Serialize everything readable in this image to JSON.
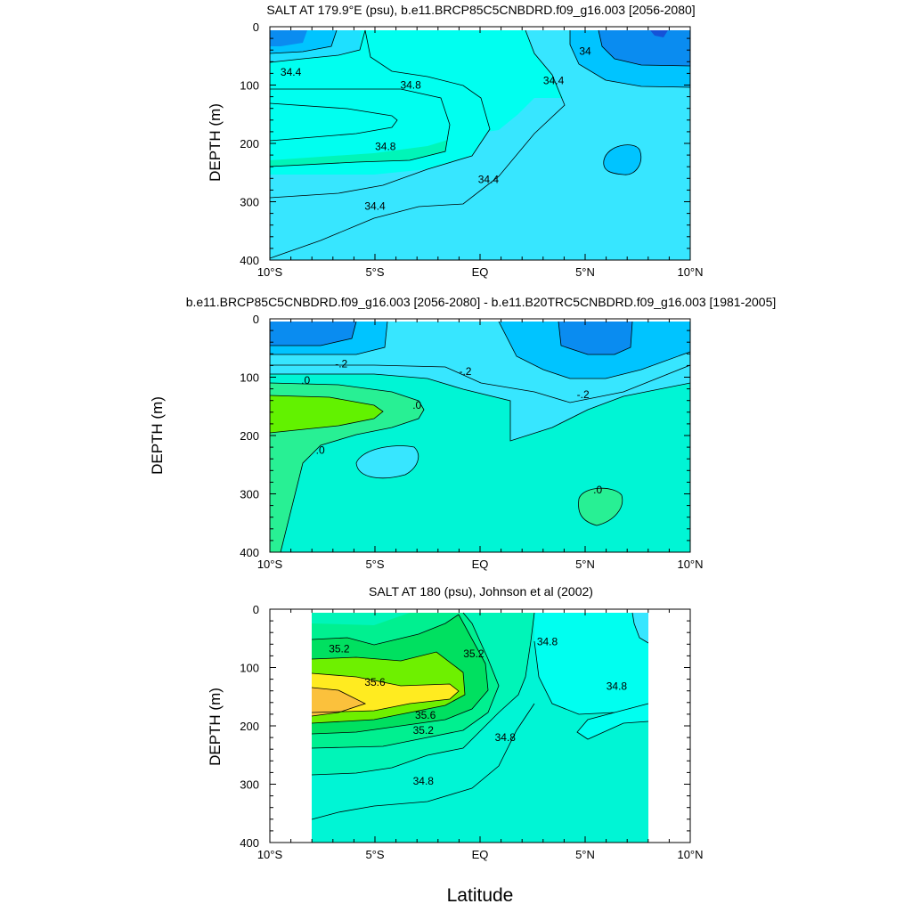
{
  "figure": {
    "xlabel": "Latitude"
  },
  "chart_data": [
    {
      "type": "contour",
      "title": "SALT AT 179.9°E (psu), b.e11.BRCP85C5CNBDRD.f09_g16.003 [2056-2080]",
      "ylabel": "DEPTH (m)",
      "xlabel": "",
      "xlim": [
        -10,
        10
      ],
      "ylim": [
        400,
        0
      ],
      "x_ticks": [
        -10,
        -5,
        0,
        5,
        10
      ],
      "x_tick_labels": [
        "10°S",
        "5°S",
        "EQ",
        "5°N",
        "10°N"
      ],
      "y_ticks": [
        0,
        100,
        200,
        300,
        400
      ],
      "y_tick_labels": [
        "0",
        "100",
        "200",
        "300",
        "400"
      ],
      "contour_labels": [
        {
          "text": "34.4",
          "lat": -9.0,
          "depth": 78
        },
        {
          "text": "34.8",
          "lat": -3.3,
          "depth": 100
        },
        {
          "text": "34.8",
          "lat": -4.5,
          "depth": 205
        },
        {
          "text": "34.4",
          "lat": -5.0,
          "depth": 308
        },
        {
          "text": "34.4",
          "lat": 0.4,
          "depth": 262
        },
        {
          "text": "34.4",
          "lat": 3.5,
          "depth": 92
        },
        {
          "text": "34",
          "lat": 5.0,
          "depth": 42
        }
      ]
    },
    {
      "type": "contour",
      "title": "b.e11.BRCP85C5CNBDRD.f09_g16.003 [2056-2080] - b.e11.B20TRC5CNBDRD.f09_g16.003 [1981-2005]",
      "ylabel": "DEPTH (m)",
      "xlabel": "",
      "xlim": [
        -10,
        10
      ],
      "ylim": [
        400,
        0
      ],
      "x_ticks": [
        -10,
        -5,
        0,
        5,
        10
      ],
      "x_tick_labels": [
        "10°S",
        "5°S",
        "EQ",
        "5°N",
        "10°N"
      ],
      "y_ticks": [
        0,
        100,
        200,
        300,
        400
      ],
      "y_tick_labels": [
        "0",
        "100",
        "200",
        "300",
        "400"
      ],
      "contour_labels": [
        {
          "text": "-.2",
          "lat": -6.6,
          "depth": 77
        },
        {
          "text": ".0",
          "lat": -8.3,
          "depth": 105
        },
        {
          "text": ".0",
          "lat": -3.0,
          "depth": 148
        },
        {
          "text": ".0",
          "lat": -7.6,
          "depth": 225
        },
        {
          "text": "-.2",
          "lat": -0.7,
          "depth": 90
        },
        {
          "text": "-.2",
          "lat": 4.9,
          "depth": 130
        },
        {
          "text": ".0",
          "lat": 5.6,
          "depth": 293
        }
      ]
    },
    {
      "type": "contour",
      "title": "SALT AT 180 (psu), Johnson et al (2002)",
      "ylabel": "DEPTH (m)",
      "xlabel": "",
      "xlim": [
        -10,
        10
      ],
      "ylim": [
        400,
        0
      ],
      "x_ticks": [
        -10,
        -5,
        0,
        5,
        10
      ],
      "x_tick_labels": [
        "10°S",
        "5°S",
        "EQ",
        "5°N",
        "10°N"
      ],
      "y_ticks": [
        0,
        100,
        200,
        300,
        400
      ],
      "y_tick_labels": [
        "0",
        "100",
        "200",
        "300",
        "400"
      ],
      "data_lat_range": [
        -8,
        8
      ],
      "contour_labels": [
        {
          "text": "35.2",
          "lat": -6.7,
          "depth": 68
        },
        {
          "text": "35.6",
          "lat": -5.0,
          "depth": 125
        },
        {
          "text": "35.6",
          "lat": -2.6,
          "depth": 182
        },
        {
          "text": "35.2",
          "lat": -2.7,
          "depth": 208
        },
        {
          "text": "34.8",
          "lat": -2.7,
          "depth": 295
        },
        {
          "text": "35.2",
          "lat": -0.3,
          "depth": 76
        },
        {
          "text": "34.8",
          "lat": 1.2,
          "depth": 220
        },
        {
          "text": "34.8",
          "lat": 3.2,
          "depth": 56
        },
        {
          "text": "34.8",
          "lat": 6.5,
          "depth": 132
        }
      ]
    }
  ]
}
